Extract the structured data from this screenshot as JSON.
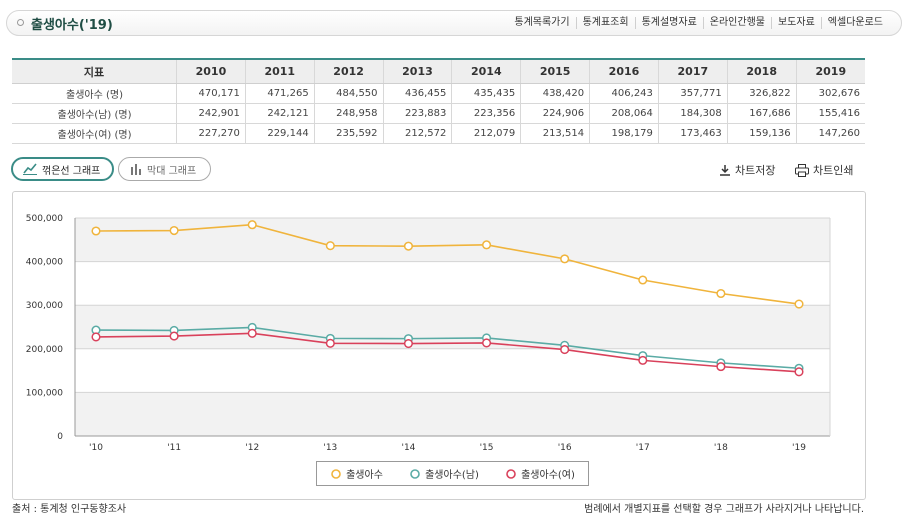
{
  "header": {
    "title": "출생아수('19)",
    "links": [
      "통계목록가기",
      "통계표조회",
      "통계설명자료",
      "온라인간행물",
      "보도자료",
      "엑셀다운로드"
    ]
  },
  "table": {
    "headers": [
      "지표",
      "2010",
      "2011",
      "2012",
      "2013",
      "2014",
      "2015",
      "2016",
      "2017",
      "2018",
      "2019"
    ],
    "rows": [
      [
        "출생아수 (명)",
        "470,171",
        "471,265",
        "484,550",
        "436,455",
        "435,435",
        "438,420",
        "406,243",
        "357,771",
        "326,822",
        "302,676"
      ],
      [
        "출생아수(남) (명)",
        "242,901",
        "242,121",
        "248,958",
        "223,883",
        "223,356",
        "224,906",
        "208,064",
        "184,308",
        "167,686",
        "155,416"
      ],
      [
        "출생아수(여) (명)",
        "227,270",
        "229,144",
        "235,592",
        "212,572",
        "212,079",
        "213,514",
        "198,179",
        "173,463",
        "159,136",
        "147,260"
      ]
    ]
  },
  "tabs": {
    "line_label": "꺾은선 그래프",
    "bar_label": "막대 그래프"
  },
  "actions": {
    "save_label": "차트저장",
    "print_label": "차트인쇄"
  },
  "footer": {
    "source": "출처 : 통계청 인구동향조사",
    "note": "범례에서 개별지표를 선택할 경우 그래프가 사라지거나 나타납니다."
  },
  "colors": {
    "accent": "#3a8c87",
    "series_total": "#f0b43c",
    "series_male": "#5aaba5",
    "series_female": "#d9415b"
  },
  "icons": {
    "line_tab": "line-chart-icon",
    "bar_tab": "bar-chart-icon",
    "save": "download-icon",
    "print": "printer-icon"
  },
  "chart_data": {
    "type": "line",
    "x": [
      "'10",
      "'11",
      "'12",
      "'13",
      "'14",
      "'15",
      "'16",
      "'17",
      "'18",
      "'19"
    ],
    "yticks": [
      "0",
      "100,000",
      "200,000",
      "300,000",
      "400,000",
      "500,000"
    ],
    "ylim": [
      0,
      500000
    ],
    "legend_position": "bottom",
    "series": [
      {
        "name": "출생아수",
        "color": "#f0b43c",
        "values": [
          470171,
          471265,
          484550,
          436455,
          435435,
          438420,
          406243,
          357771,
          326822,
          302676
        ]
      },
      {
        "name": "출생아수(남)",
        "color": "#5aaba5",
        "values": [
          242901,
          242121,
          248958,
          223883,
          223356,
          224906,
          208064,
          184308,
          167686,
          155416
        ]
      },
      {
        "name": "출생아수(여)",
        "color": "#d9415b",
        "values": [
          227270,
          229144,
          235592,
          212572,
          212079,
          213514,
          198179,
          173463,
          159136,
          147260
        ]
      }
    ]
  }
}
